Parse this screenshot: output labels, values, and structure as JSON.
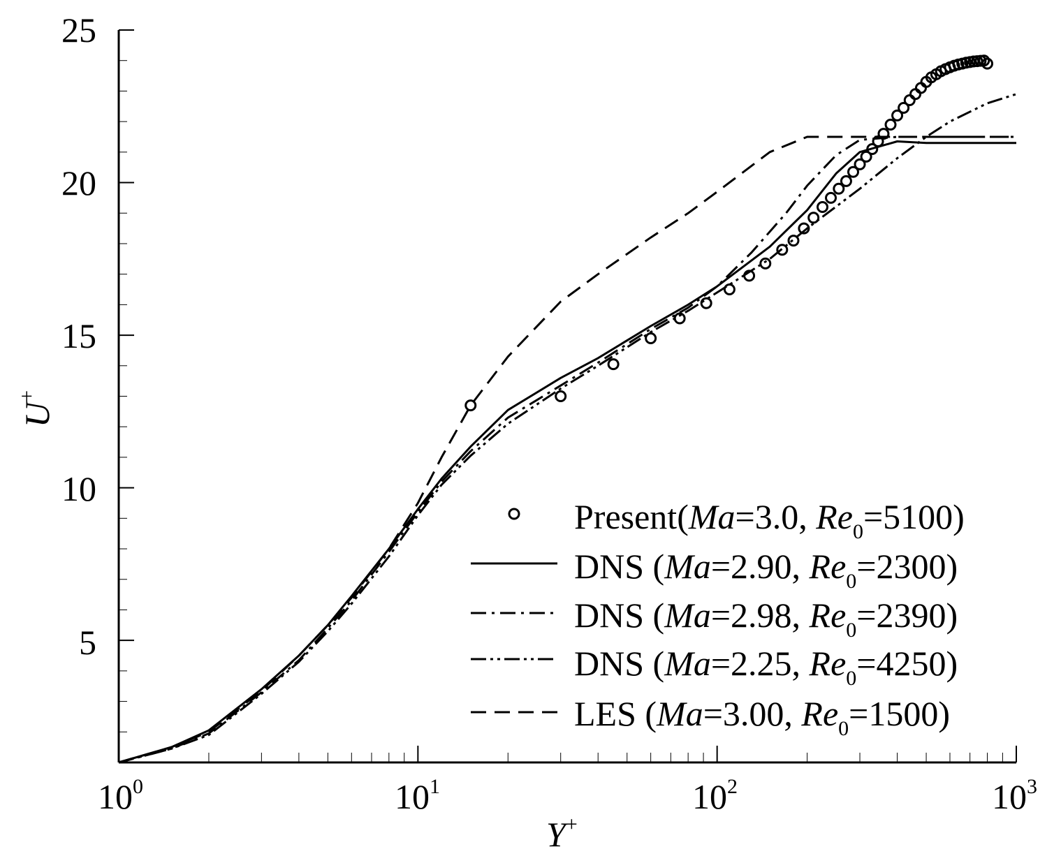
{
  "chart_data": {
    "type": "line",
    "xscale": "log",
    "xlim": [
      1,
      1000
    ],
    "ylim": [
      1,
      25
    ],
    "xlabel": "Y",
    "xlabel_sup": "+",
    "ylabel": "U",
    "ylabel_sup": "+",
    "x_ticks": [
      {
        "base": "10",
        "exp": "0",
        "value": 1
      },
      {
        "base": "10",
        "exp": "1",
        "value": 10
      },
      {
        "base": "10",
        "exp": "2",
        "value": 100
      },
      {
        "base": "10",
        "exp": "3",
        "value": 1000
      }
    ],
    "y_ticks": [
      {
        "label": "5",
        "value": 5
      },
      {
        "label": "10",
        "value": 10
      },
      {
        "label": "15",
        "value": 15
      },
      {
        "label": "20",
        "value": 20
      },
      {
        "label": "25",
        "value": 25
      }
    ],
    "legend_position": "bottom-right",
    "series": [
      {
        "name": "Present",
        "style": "markers",
        "legend": {
          "pre": "Present(",
          "ma_label": "Ma",
          "ma_value": "=3.0, ",
          "re_label": "Re",
          "re_sub": "0",
          "re_value": "=5100)"
        },
        "x": [
          15,
          30,
          45,
          60,
          75,
          92,
          110,
          128,
          145,
          165,
          180,
          195,
          210,
          225,
          240,
          255,
          270,
          285,
          300,
          315,
          330,
          345,
          360,
          380,
          400,
          420,
          440,
          460,
          480,
          500,
          520,
          540,
          560,
          580,
          600,
          620,
          640,
          660,
          680,
          700,
          720,
          740,
          760,
          780,
          800
        ],
        "y": [
          12.7,
          13.0,
          14.05,
          14.9,
          15.55,
          16.05,
          16.5,
          16.95,
          17.35,
          17.8,
          18.1,
          18.5,
          18.85,
          19.2,
          19.5,
          19.8,
          20.05,
          20.35,
          20.6,
          20.85,
          21.1,
          21.35,
          21.6,
          21.9,
          22.2,
          22.45,
          22.7,
          22.9,
          23.1,
          23.3,
          23.45,
          23.55,
          23.65,
          23.72,
          23.78,
          23.83,
          23.87,
          23.9,
          23.93,
          23.95,
          23.97,
          23.98,
          23.99,
          24.0,
          23.9
        ]
      },
      {
        "name": "DNS (Ma=2.90, Re0=2300)",
        "style": "solid",
        "legend": {
          "pre": "DNS (",
          "ma_label": "Ma",
          "ma_value": "=2.90, ",
          "re_label": "Re",
          "re_sub": "0",
          "re_value": "=2300)"
        },
        "x": [
          1,
          1.5,
          2,
          3,
          4,
          5,
          6,
          8,
          10,
          12,
          15,
          20,
          30,
          40,
          60,
          80,
          100,
          150,
          200,
          250,
          300,
          400,
          500,
          700,
          1000
        ],
        "y": [
          1.0,
          1.5,
          2.05,
          3.4,
          4.5,
          5.5,
          6.45,
          8.0,
          9.3,
          10.3,
          11.35,
          12.55,
          13.6,
          14.25,
          15.3,
          16.0,
          16.6,
          17.9,
          19.1,
          20.3,
          21.0,
          21.35,
          21.3,
          21.3,
          21.3
        ]
      },
      {
        "name": "DNS (Ma=2.98, Re0=2390)",
        "style": "dashdot",
        "legend": {
          "pre": "DNS (",
          "ma_label": "Ma",
          "ma_value": "=2.98, ",
          "re_label": "Re",
          "re_sub": "0",
          "re_value": "=2390)"
        },
        "x": [
          1,
          1.5,
          2,
          3,
          4,
          5,
          6,
          8,
          10,
          12,
          15,
          20,
          30,
          40,
          60,
          80,
          100,
          130,
          170,
          200,
          250,
          300,
          400,
          500,
          700,
          1000
        ],
        "y": [
          1.0,
          1.45,
          1.95,
          3.3,
          4.35,
          5.4,
          6.3,
          7.9,
          9.2,
          10.2,
          11.2,
          12.3,
          13.35,
          14.1,
          15.2,
          15.9,
          16.6,
          17.7,
          19.0,
          19.9,
          20.9,
          21.4,
          21.5,
          21.5,
          21.5,
          21.5
        ]
      },
      {
        "name": "DNS (Ma=2.25, Re0=4250)",
        "style": "dashdotdot",
        "legend": {
          "pre": "DNS (",
          "ma_label": "Ma",
          "ma_value": "=2.25, ",
          "re_label": "Re",
          "re_sub": "0",
          "re_value": "=4250)"
        },
        "x": [
          1,
          1.5,
          2,
          3,
          4,
          5,
          6,
          8,
          10,
          12,
          15,
          20,
          30,
          40,
          60,
          80,
          100,
          150,
          200,
          300,
          400,
          500,
          600,
          800,
          1000
        ],
        "y": [
          1.0,
          1.45,
          1.9,
          3.25,
          4.3,
          5.3,
          6.2,
          7.75,
          9.1,
          10.1,
          11.05,
          12.1,
          13.25,
          14.0,
          15.1,
          15.8,
          16.4,
          17.5,
          18.5,
          19.8,
          20.8,
          21.5,
          22.0,
          22.6,
          22.9
        ]
      },
      {
        "name": "LES (Ma=3.00, Re0=1500)",
        "style": "dashed",
        "legend": {
          "pre": "LES (",
          "ma_label": "Ma",
          "ma_value": "=3.00, ",
          "re_label": "Re",
          "re_sub": "0",
          "re_value": "=1500)"
        },
        "x": [
          1,
          1.5,
          2,
          3,
          4,
          5,
          6,
          8,
          10,
          12,
          15,
          20,
          30,
          40,
          60,
          80,
          100,
          150,
          200,
          300,
          400,
          500,
          700,
          1000
        ],
        "y": [
          1.0,
          1.5,
          2.0,
          3.35,
          4.5,
          5.5,
          6.4,
          8.0,
          9.5,
          11.0,
          12.7,
          14.3,
          16.1,
          17.0,
          18.2,
          19.0,
          19.7,
          21.0,
          21.5,
          21.5,
          21.5,
          21.5,
          21.5,
          21.5
        ]
      }
    ]
  }
}
